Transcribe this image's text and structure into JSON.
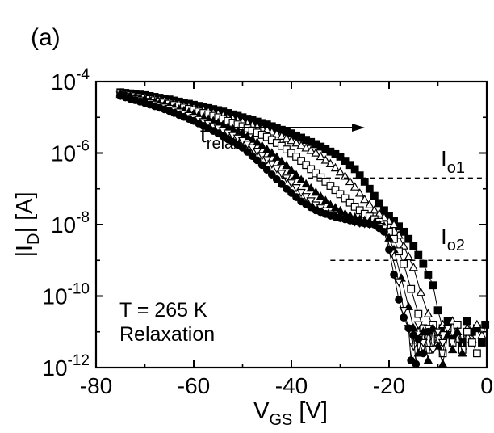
{
  "panel_label": "(a)",
  "chart_data": {
    "type": "scatter",
    "xlabel": {
      "main": "V",
      "sub": "GS",
      "unit": " [V]"
    },
    "ylabel": {
      "pre": "|I",
      "sub": "D",
      "post": "| [A]"
    },
    "xlim": [
      -80,
      0
    ],
    "ylim_log10": [
      -12,
      -4
    ],
    "yscale": "log",
    "x_ticks": [
      {
        "value": -80,
        "label": "-80"
      },
      {
        "value": -60,
        "label": "-60"
      },
      {
        "value": -40,
        "label": "-40"
      },
      {
        "value": -20,
        "label": "-20"
      },
      {
        "value": 0,
        "label": "0"
      }
    ],
    "y_ticks": [
      {
        "exp": -4,
        "base": "10",
        "sup": "-4"
      },
      {
        "exp": -6,
        "base": "10",
        "sup": "-6"
      },
      {
        "exp": -8,
        "base": "10",
        "sup": "-8"
      },
      {
        "exp": -10,
        "base": "10",
        "sup": "-10"
      },
      {
        "exp": -12,
        "base": "10",
        "sup": "-12"
      }
    ],
    "annotations": {
      "t_relax": {
        "main": "t",
        "sub": "relax"
      },
      "io1": {
        "main": "I",
        "sub": "o1",
        "y_log10": -6.7,
        "x_start": -42
      },
      "io2": {
        "main": "I",
        "sub": "o2",
        "y_log10": -9.0,
        "x_start": -32
      },
      "temperature": "T = 265 K",
      "mode": "Relaxation"
    },
    "series": [
      {
        "marker": "square",
        "fill": "filled",
        "curve": [
          [
            -75,
            -4.3
          ],
          [
            -70,
            -4.38
          ],
          [
            -65,
            -4.5
          ],
          [
            -60,
            -4.65
          ],
          [
            -55,
            -4.8
          ],
          [
            -50,
            -5.0
          ],
          [
            -45,
            -5.2
          ],
          [
            -40,
            -5.45
          ],
          [
            -35,
            -5.75
          ],
          [
            -30,
            -6.1
          ],
          [
            -27,
            -6.45
          ],
          [
            -25,
            -6.8
          ],
          [
            -23,
            -7.2
          ],
          [
            -21,
            -7.6
          ],
          [
            -19,
            -7.9
          ],
          [
            -17,
            -8.2
          ],
          [
            -15,
            -8.6
          ],
          [
            -13,
            -9.1
          ],
          [
            -11,
            -9.7
          ],
          [
            -10,
            -10.4
          ],
          [
            -9,
            -10.9
          ]
        ],
        "noise": [
          [
            -9,
            -10.9
          ],
          [
            -8,
            -10.7
          ],
          [
            -7,
            -11.2
          ],
          [
            -6,
            -10.8
          ],
          [
            -5,
            -11.3
          ],
          [
            -4,
            -10.7
          ],
          [
            -3,
            -11.0
          ],
          [
            -2,
            -10.9
          ],
          [
            -1,
            -11.3
          ],
          [
            -0.3,
            -10.8
          ]
        ]
      },
      {
        "marker": "triangle",
        "fill": "hollow",
        "curve": [
          [
            -75,
            -4.32
          ],
          [
            -70,
            -4.42
          ],
          [
            -65,
            -4.56
          ],
          [
            -60,
            -4.73
          ],
          [
            -55,
            -4.9
          ],
          [
            -50,
            -5.12
          ],
          [
            -45,
            -5.35
          ],
          [
            -40,
            -5.65
          ],
          [
            -35,
            -6.0
          ],
          [
            -32,
            -6.3
          ],
          [
            -29,
            -6.65
          ],
          [
            -27,
            -6.95
          ],
          [
            -25,
            -7.3
          ],
          [
            -23,
            -7.6
          ],
          [
            -21,
            -7.8
          ],
          [
            -19,
            -8.0
          ],
          [
            -17,
            -8.6
          ],
          [
            -15,
            -9.2
          ],
          [
            -13.5,
            -9.9
          ],
          [
            -12,
            -10.5
          ],
          [
            -11,
            -10.9
          ]
        ],
        "noise": [
          [
            -11,
            -10.9
          ],
          [
            -10,
            -11.3
          ],
          [
            -9,
            -10.8
          ],
          [
            -8,
            -11.1
          ],
          [
            -7,
            -10.7
          ],
          [
            -6,
            -11.2
          ],
          [
            -5,
            -11.4
          ],
          [
            -4,
            -10.9
          ],
          [
            -3,
            -11.2
          ],
          [
            -2,
            -10.8
          ],
          [
            -1,
            -11.1
          ]
        ]
      },
      {
        "marker": "square",
        "fill": "hollow",
        "curve": [
          [
            -75,
            -4.34
          ],
          [
            -70,
            -4.46
          ],
          [
            -65,
            -4.62
          ],
          [
            -60,
            -4.8
          ],
          [
            -55,
            -5.0
          ],
          [
            -50,
            -5.25
          ],
          [
            -45,
            -5.55
          ],
          [
            -42,
            -5.8
          ],
          [
            -39,
            -6.1
          ],
          [
            -36,
            -6.45
          ],
          [
            -33,
            -6.8
          ],
          [
            -30,
            -7.15
          ],
          [
            -27,
            -7.5
          ],
          [
            -25,
            -7.7
          ],
          [
            -23,
            -7.85
          ],
          [
            -21,
            -8.0
          ],
          [
            -19,
            -8.4
          ],
          [
            -17,
            -9.1
          ],
          [
            -15.5,
            -9.8
          ],
          [
            -14,
            -10.5
          ],
          [
            -13,
            -10.9
          ]
        ],
        "noise": [
          [
            -13,
            -10.9
          ],
          [
            -12,
            -11.5
          ],
          [
            -11,
            -10.8
          ],
          [
            -10,
            -11.2
          ],
          [
            -9,
            -11.6
          ],
          [
            -8,
            -10.9
          ],
          [
            -7,
            -11.3
          ],
          [
            -6,
            -10.8
          ],
          [
            -5,
            -11.5
          ],
          [
            -4,
            -11.0
          ],
          [
            -3,
            -11.3
          ],
          [
            -2,
            -11.6
          ]
        ]
      },
      {
        "marker": "triangle",
        "fill": "filled",
        "curve": [
          [
            -75,
            -4.36
          ],
          [
            -70,
            -4.5
          ],
          [
            -65,
            -4.68
          ],
          [
            -60,
            -4.9
          ],
          [
            -55,
            -5.15
          ],
          [
            -50,
            -5.45
          ],
          [
            -47,
            -5.7
          ],
          [
            -44,
            -6.0
          ],
          [
            -41,
            -6.35
          ],
          [
            -38,
            -6.75
          ],
          [
            -35,
            -7.1
          ],
          [
            -32,
            -7.45
          ],
          [
            -29,
            -7.7
          ],
          [
            -26,
            -7.85
          ],
          [
            -23,
            -7.95
          ],
          [
            -21,
            -8.05
          ],
          [
            -19,
            -8.7
          ],
          [
            -17.5,
            -9.5
          ],
          [
            -16,
            -10.3
          ],
          [
            -15,
            -10.9
          ]
        ],
        "noise": [
          [
            -15,
            -10.9
          ],
          [
            -14,
            -11.6
          ],
          [
            -13,
            -11.0
          ],
          [
            -12,
            -11.8
          ],
          [
            -11,
            -10.9
          ],
          [
            -10,
            -11.4
          ],
          [
            -9,
            -11.9
          ],
          [
            -8,
            -11.1
          ],
          [
            -7,
            -11.5
          ],
          [
            -6,
            -11.0
          ],
          [
            -5,
            -11.6
          ]
        ]
      },
      {
        "marker": "triangle-down",
        "fill": "hollow",
        "curve": [
          [
            -75,
            -4.38
          ],
          [
            -70,
            -4.55
          ],
          [
            -65,
            -4.75
          ],
          [
            -60,
            -5.0
          ],
          [
            -55,
            -5.3
          ],
          [
            -50,
            -5.65
          ],
          [
            -47,
            -5.95
          ],
          [
            -44,
            -6.3
          ],
          [
            -41,
            -6.7
          ],
          [
            -38,
            -7.1
          ],
          [
            -35,
            -7.45
          ],
          [
            -32,
            -7.7
          ],
          [
            -29,
            -7.85
          ],
          [
            -26,
            -7.95
          ],
          [
            -23,
            -8.0
          ],
          [
            -21,
            -8.1
          ],
          [
            -19.5,
            -8.8
          ],
          [
            -18,
            -9.6
          ],
          [
            -17,
            -10.4
          ],
          [
            -16,
            -10.9
          ]
        ],
        "noise": [
          [
            -16,
            -10.9
          ],
          [
            -15,
            -11.4
          ],
          [
            -14,
            -10.8
          ],
          [
            -13,
            -11.3
          ],
          [
            -12,
            -10.9
          ],
          [
            -11,
            -11.5
          ],
          [
            -10,
            -11.0
          ],
          [
            -9,
            -11.3
          ],
          [
            -8,
            -10.9
          ]
        ]
      },
      {
        "marker": "circle",
        "fill": "filled",
        "curve": [
          [
            -75,
            -4.4
          ],
          [
            -70,
            -4.6
          ],
          [
            -65,
            -4.82
          ],
          [
            -60,
            -5.1
          ],
          [
            -55,
            -5.45
          ],
          [
            -50,
            -5.85
          ],
          [
            -47,
            -6.2
          ],
          [
            -44,
            -6.6
          ],
          [
            -41,
            -7.0
          ],
          [
            -38,
            -7.35
          ],
          [
            -35,
            -7.6
          ],
          [
            -32,
            -7.75
          ],
          [
            -29,
            -7.85
          ],
          [
            -26,
            -7.95
          ],
          [
            -23,
            -8.0
          ],
          [
            -21,
            -8.2
          ],
          [
            -20,
            -8.7
          ],
          [
            -19,
            -9.4
          ],
          [
            -18,
            -10.1
          ],
          [
            -17,
            -10.6
          ],
          [
            -16,
            -10.9
          ]
        ],
        "noise": [
          [
            -16,
            -10.9
          ],
          [
            -15.5,
            -11.8
          ],
          [
            -15,
            -11.1
          ],
          [
            -14.5,
            -11.9
          ],
          [
            -14,
            -11.2
          ],
          [
            -13,
            -11.6
          ],
          [
            -12,
            -11.0
          ]
        ]
      }
    ]
  }
}
